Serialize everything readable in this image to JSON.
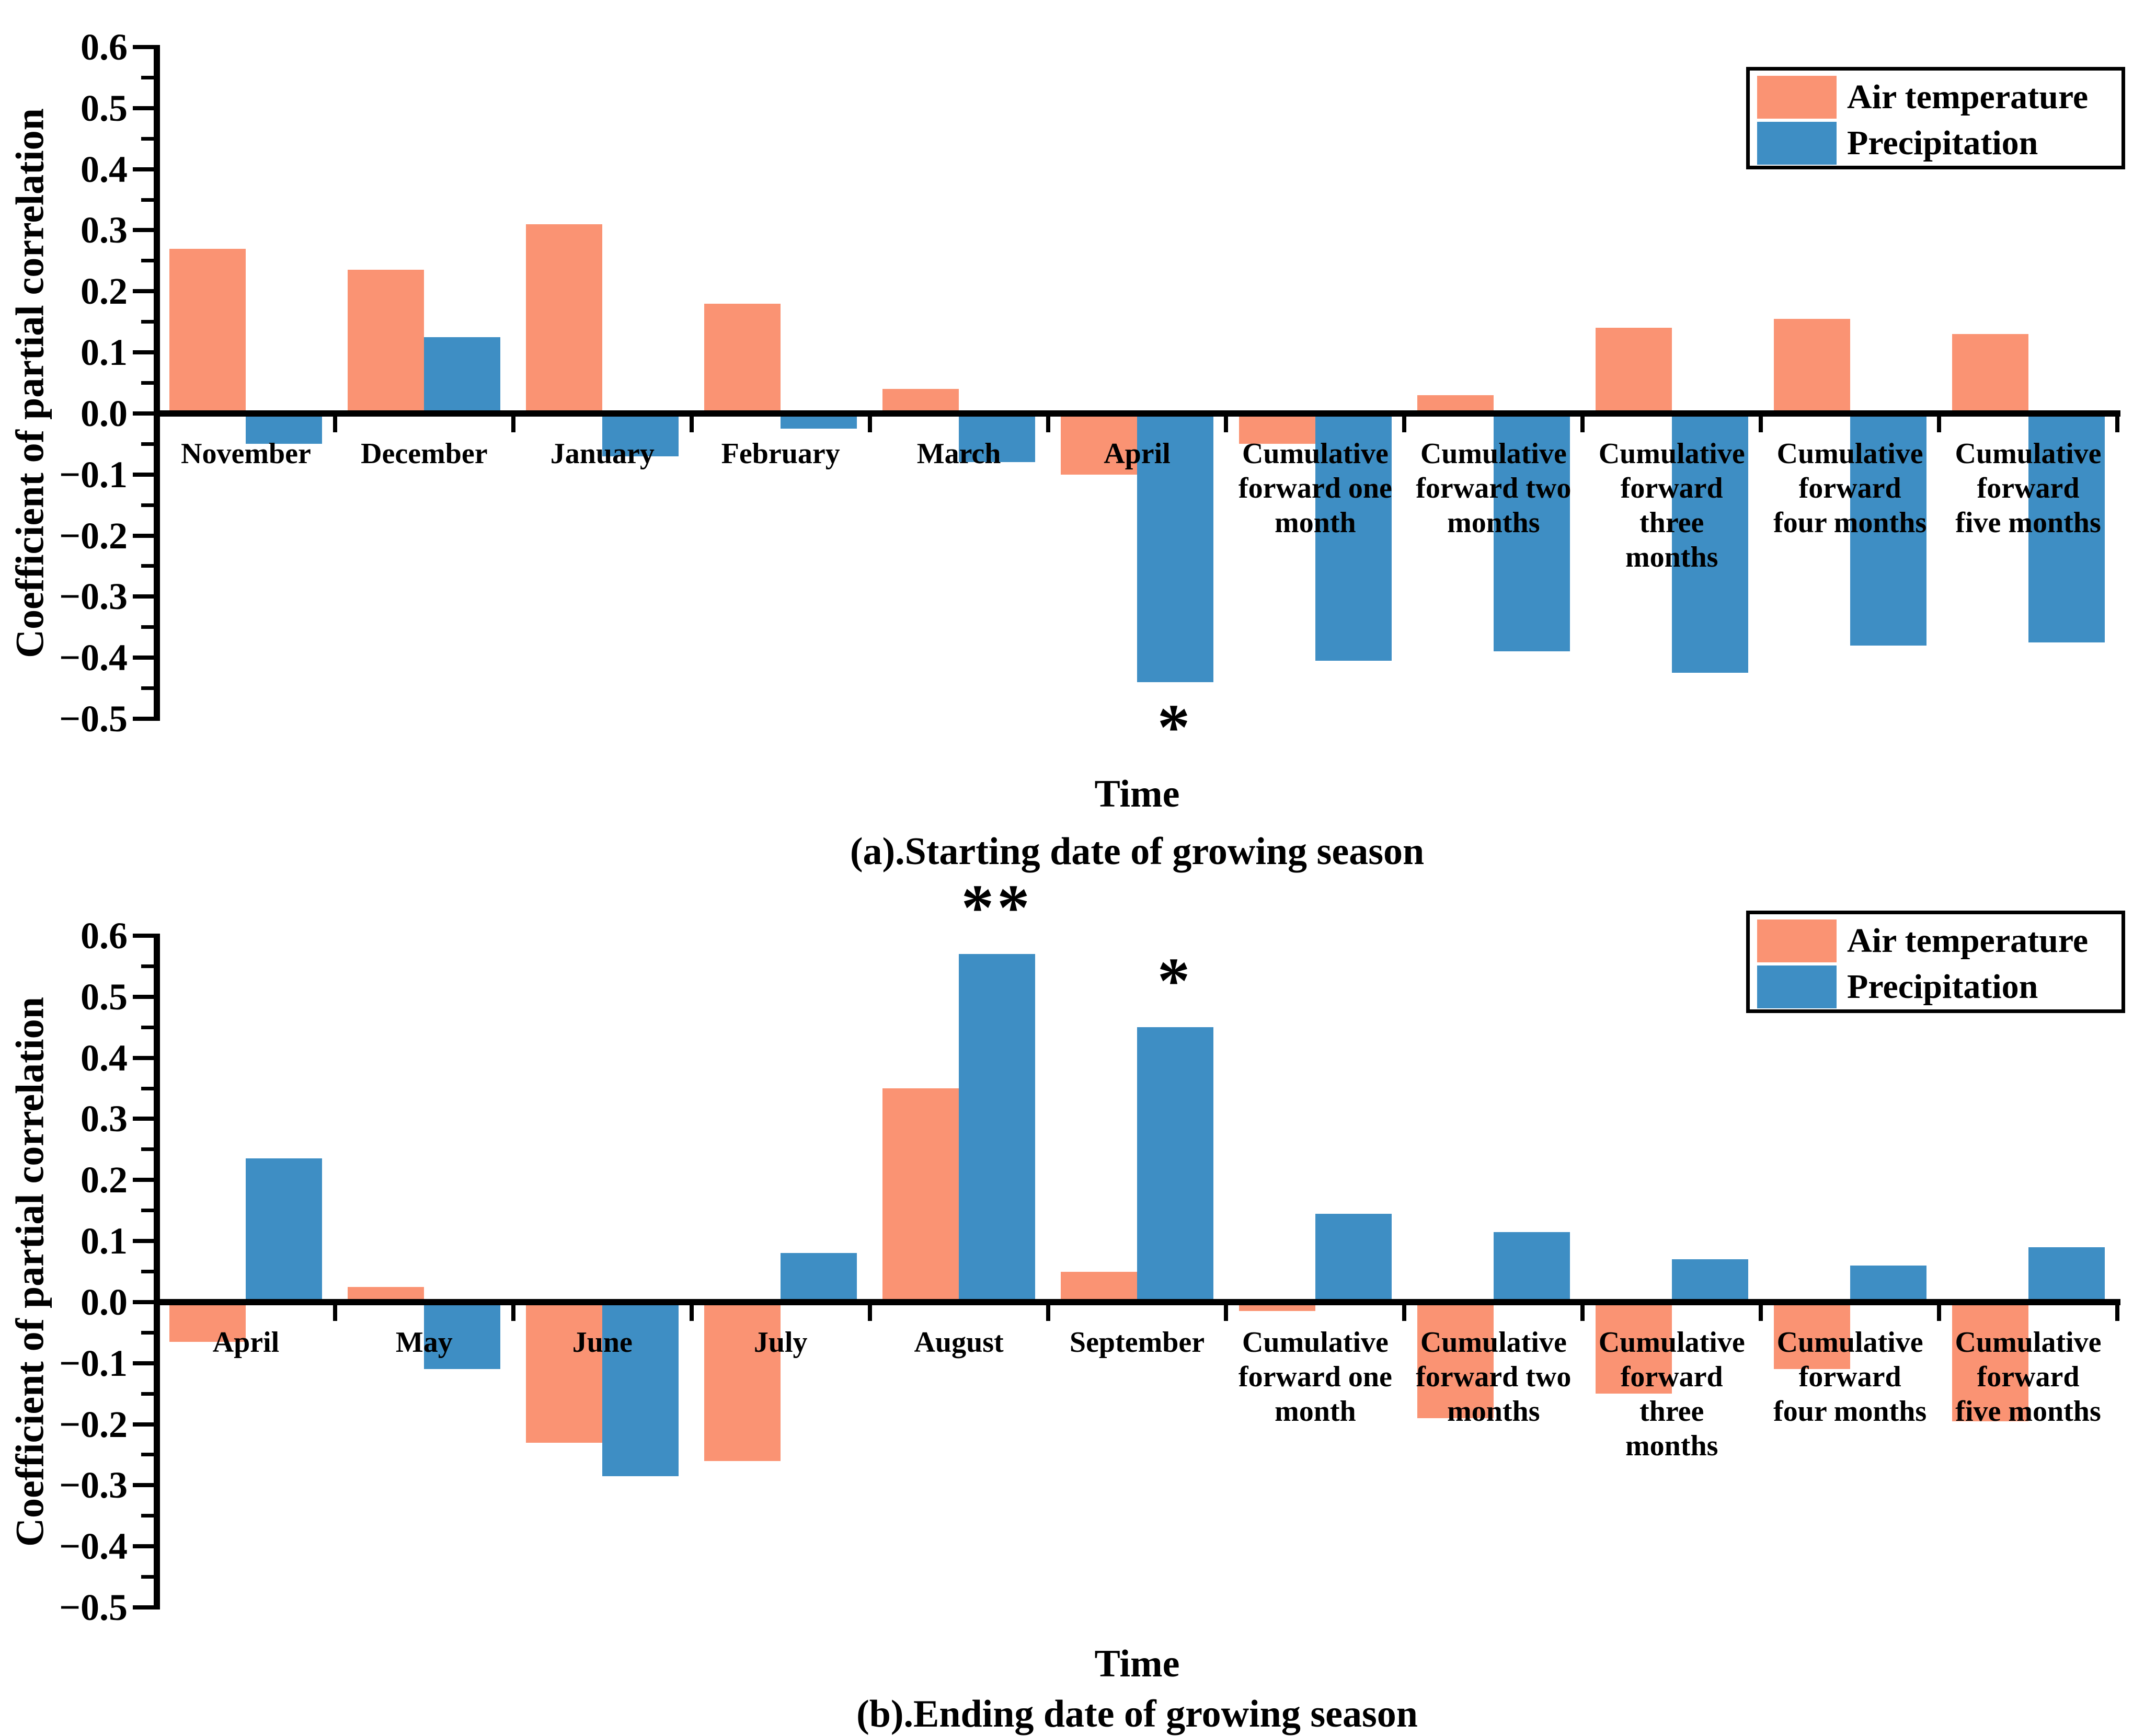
{
  "figure": {
    "background_color": "#FFFFFF",
    "ink_color": "#000000"
  },
  "chart_data": [
    {
      "type": "bar",
      "panel": "a",
      "title": "(a).Starting date of growing season",
      "xlabel": "Time",
      "ylabel": "Coefficient of partial correlation",
      "ylim": [
        -0.5,
        0.6
      ],
      "ytick_step": 0.1,
      "yminortick_step": 0.05,
      "grid": false,
      "legend_position": "top-right",
      "ytick_labels": [
        "0.6",
        "0.5",
        "0.4",
        "0.3",
        "0.2",
        "0.1",
        "0.0",
        "−0.1",
        "−0.2",
        "−0.3",
        "−0.4",
        "−0.5"
      ],
      "categories": [
        "November",
        "December",
        "January",
        "February",
        "March",
        "April",
        "Cumulative forward one month",
        "Cumulative forward two months",
        "Cumulative forward three months",
        "Cumulative forward four months",
        "Cumulative forward five months"
      ],
      "category_label_lines": [
        [
          "November"
        ],
        [
          "December"
        ],
        [
          "January"
        ],
        [
          "February"
        ],
        [
          "March"
        ],
        [
          "April"
        ],
        [
          "Cumulative",
          "forward one",
          "month"
        ],
        [
          "Cumulative",
          "forward two",
          "months"
        ],
        [
          "Cumulative",
          "forward",
          "three",
          "months"
        ],
        [
          "Cumulative",
          "forward",
          "four months"
        ],
        [
          "Cumulative",
          "forward",
          "five months"
        ]
      ],
      "series": [
        {
          "name": "Air temperature",
          "color": "#FA9373",
          "values": [
            0.27,
            0.235,
            0.31,
            0.18,
            0.04,
            -0.1,
            -0.05,
            0.03,
            0.14,
            0.155,
            0.13
          ]
        },
        {
          "name": "Precipitation",
          "color": "#3E8EC4",
          "values": [
            -0.05,
            0.125,
            -0.07,
            -0.025,
            -0.08,
            -0.44,
            -0.405,
            -0.39,
            -0.425,
            -0.38,
            -0.375
          ]
        }
      ],
      "significance_markers": [
        {
          "category": "April",
          "category_index": 5,
          "series": "Precipitation",
          "series_index": 1,
          "text": "*",
          "placement": "below"
        }
      ]
    },
    {
      "type": "bar",
      "panel": "b",
      "title": "(b).Ending date of growing season",
      "xlabel": "Time",
      "ylabel": "Coefficient of partial correlation",
      "ylim": [
        -0.5,
        0.6
      ],
      "ytick_step": 0.1,
      "yminortick_step": 0.05,
      "grid": false,
      "legend_position": "top-right",
      "ytick_labels": [
        "0.6",
        "0.5",
        "0.4",
        "0.3",
        "0.2",
        "0.1",
        "0.0",
        "−0.1",
        "−0.2",
        "−0.3",
        "−0.4",
        "−0.5"
      ],
      "categories": [
        "April",
        "May",
        "June",
        "July",
        "August",
        "September",
        "Cumulative forward one month",
        "Cumulative forward two months",
        "Cumulative forward three months",
        "Cumulative forward four months",
        "Cumulative forward five months"
      ],
      "category_label_lines": [
        [
          "April"
        ],
        [
          "May"
        ],
        [
          "June"
        ],
        [
          "July"
        ],
        [
          "August"
        ],
        [
          "September"
        ],
        [
          "Cumulative",
          "forward one",
          "month"
        ],
        [
          "Cumulative",
          "forward two",
          "months"
        ],
        [
          "Cumulative",
          "forward",
          "three",
          "months"
        ],
        [
          "Cumulative",
          "forward",
          "four months"
        ],
        [
          "Cumulative",
          "forward",
          "five months"
        ]
      ],
      "series": [
        {
          "name": "Air temperature",
          "color": "#FA9373",
          "values": [
            -0.065,
            0.025,
            -0.23,
            -0.26,
            0.35,
            0.05,
            -0.015,
            -0.19,
            -0.15,
            -0.11,
            -0.195
          ]
        },
        {
          "name": "Precipitation",
          "color": "#3E8EC4",
          "values": [
            0.235,
            -0.11,
            -0.285,
            0.08,
            0.57,
            0.45,
            0.145,
            0.115,
            0.07,
            0.06,
            0.09
          ]
        }
      ],
      "significance_markers": [
        {
          "category": "August",
          "category_index": 4,
          "series": "Precipitation",
          "series_index": 1,
          "text": "**",
          "placement": "above"
        },
        {
          "category": "September",
          "category_index": 5,
          "series": "Precipitation",
          "series_index": 1,
          "text": "*",
          "placement": "above"
        }
      ]
    }
  ]
}
